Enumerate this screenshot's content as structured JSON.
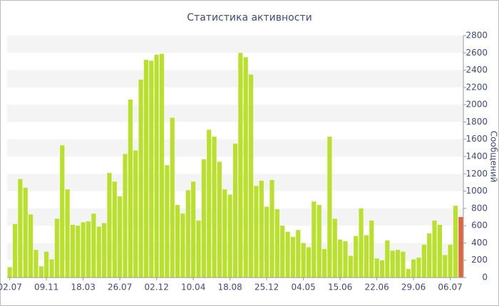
{
  "chart_data": {
    "type": "bar",
    "title": "Статистика активности",
    "y_axis_label": "Сообщений",
    "categories": [
      "02.07",
      null,
      null,
      null,
      null,
      null,
      null,
      "09.11",
      null,
      null,
      null,
      null,
      null,
      null,
      "18.03",
      null,
      null,
      null,
      null,
      null,
      null,
      "26.07",
      null,
      null,
      null,
      null,
      null,
      null,
      "02.12",
      null,
      null,
      null,
      null,
      null,
      null,
      "10.04",
      null,
      null,
      null,
      null,
      null,
      null,
      "18.08",
      null,
      null,
      null,
      null,
      null,
      null,
      "25.12",
      null,
      null,
      null,
      null,
      null,
      null,
      "04.05",
      null,
      null,
      null,
      null,
      null,
      null,
      "15.06",
      null,
      null,
      null,
      null,
      null,
      null,
      "22.06",
      null,
      null,
      null,
      null,
      null,
      null,
      "29.06",
      null,
      null,
      null,
      null,
      null,
      null,
      "06.07",
      null,
      null
    ],
    "values": [
      120,
      620,
      1140,
      1040,
      730,
      320,
      130,
      300,
      210,
      680,
      1530,
      1020,
      610,
      600,
      640,
      650,
      740,
      590,
      630,
      1210,
      1110,
      940,
      1430,
      2060,
      1470,
      2290,
      2520,
      2510,
      2580,
      2590,
      1300,
      1850,
      840,
      740,
      1010,
      1110,
      660,
      1370,
      1710,
      1630,
      1340,
      1020,
      960,
      1550,
      2600,
      2550,
      2350,
      1060,
      1120,
      820,
      1130,
      790,
      600,
      530,
      470,
      550,
      400,
      350,
      880,
      840,
      330,
      1630,
      680,
      440,
      420,
      250,
      480,
      800,
      490,
      660,
      220,
      200,
      430,
      310,
      320,
      300,
      100,
      210,
      230,
      380,
      510,
      660,
      610,
      260,
      380,
      830,
      700
    ],
    "color": "#b8e02c",
    "highlight_color": "#e2643e",
    "ylim": [
      0,
      2800
    ],
    "yticks": [
      0,
      200,
      400,
      600,
      800,
      1000,
      1200,
      1400,
      1600,
      1800,
      2000,
      2200,
      2400,
      2600,
      2800
    ],
    "grid": "bands",
    "y_axis_side": "right"
  }
}
